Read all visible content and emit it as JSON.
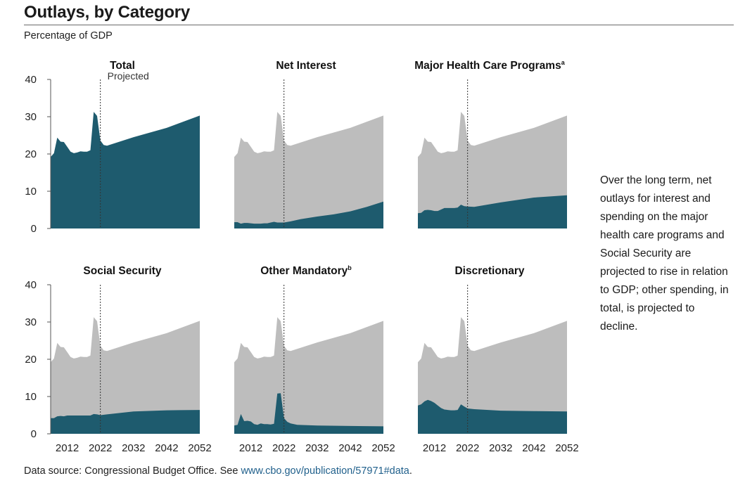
{
  "header": {
    "title": "Outlays, by Category",
    "subtitle": "Percentage of GDP"
  },
  "side_note": "Over the long term, net outlays for interest and spending on the major health care programs and Social Security are projected to rise in relation to GDP; other spending, in total, is projected to decline.",
  "footer": {
    "prefix": "Data source: Congressional Budget Office. See ",
    "link_text": "www.cbo.gov/publication/57971#data",
    "suffix": "."
  },
  "colors": {
    "category": "#1e5b6e",
    "total_background": "#bdbdbd",
    "axis": "#555555",
    "text": "#222222"
  },
  "chart_data": {
    "type": "area",
    "x_ticks": [
      2012,
      2022,
      2032,
      2042,
      2052
    ],
    "y_ticks": [
      0,
      10,
      20,
      30,
      40
    ],
    "xlim": [
      2007,
      2052
    ],
    "ylim": [
      0,
      40
    ],
    "projection_start": 2022,
    "projection_label": "Projected",
    "total": {
      "x": [
        2007,
        2008,
        2009,
        2010,
        2011,
        2012,
        2013,
        2014,
        2015,
        2016,
        2017,
        2018,
        2019,
        2020,
        2021,
        2022,
        2023,
        2024,
        2032,
        2042,
        2052
      ],
      "values": [
        19.2,
        20.2,
        24.4,
        23.3,
        23.2,
        21.9,
        20.6,
        20.2,
        20.4,
        20.7,
        20.6,
        20.6,
        21.0,
        31.3,
        30.2,
        23.6,
        22.4,
        22.2,
        24.5,
        27.0,
        30.3
      ]
    },
    "panels": [
      {
        "title": "Total",
        "superscript": "",
        "shows_background": false,
        "x": [
          2007,
          2008,
          2009,
          2010,
          2011,
          2012,
          2013,
          2014,
          2015,
          2016,
          2017,
          2018,
          2019,
          2020,
          2021,
          2022,
          2023,
          2024,
          2032,
          2042,
          2052
        ],
        "values": [
          19.2,
          20.2,
          24.4,
          23.3,
          23.2,
          21.9,
          20.6,
          20.2,
          20.4,
          20.7,
          20.6,
          20.6,
          21.0,
          31.3,
          30.2,
          23.6,
          22.4,
          22.2,
          24.5,
          27.0,
          30.3
        ]
      },
      {
        "title": "Net Interest",
        "superscript": "",
        "shows_background": true,
        "x": [
          2007,
          2008,
          2009,
          2010,
          2011,
          2012,
          2013,
          2014,
          2015,
          2016,
          2017,
          2018,
          2019,
          2020,
          2021,
          2022,
          2024,
          2027,
          2032,
          2037,
          2042,
          2047,
          2052
        ],
        "values": [
          1.7,
          1.7,
          1.3,
          1.5,
          1.5,
          1.4,
          1.3,
          1.3,
          1.3,
          1.4,
          1.4,
          1.6,
          1.8,
          1.6,
          1.6,
          1.6,
          1.9,
          2.5,
          3.2,
          3.8,
          4.6,
          5.8,
          7.2
        ]
      },
      {
        "title": "Major Health Care Programs",
        "superscript": "a",
        "shows_background": true,
        "x": [
          2007,
          2008,
          2009,
          2010,
          2011,
          2012,
          2013,
          2014,
          2015,
          2016,
          2017,
          2018,
          2019,
          2020,
          2021,
          2022,
          2024,
          2032,
          2042,
          2052
        ],
        "values": [
          4.1,
          4.2,
          4.9,
          5.0,
          4.9,
          4.7,
          4.7,
          5.1,
          5.5,
          5.5,
          5.5,
          5.5,
          5.6,
          6.4,
          6.0,
          5.9,
          5.8,
          7.0,
          8.3,
          8.9
        ]
      },
      {
        "title": "Social Security",
        "superscript": "",
        "shows_background": true,
        "x": [
          2007,
          2008,
          2009,
          2010,
          2011,
          2012,
          2013,
          2014,
          2015,
          2016,
          2017,
          2018,
          2019,
          2020,
          2021,
          2022,
          2024,
          2032,
          2042,
          2052
        ],
        "values": [
          4.2,
          4.2,
          4.7,
          4.8,
          4.7,
          4.9,
          4.9,
          4.9,
          4.9,
          4.9,
          4.9,
          4.9,
          4.9,
          5.3,
          5.2,
          5.0,
          5.2,
          6.0,
          6.3,
          6.4
        ]
      },
      {
        "title": "Other Mandatory",
        "superscript": "b",
        "shows_background": true,
        "x": [
          2007,
          2008,
          2009,
          2010,
          2011,
          2012,
          2013,
          2014,
          2015,
          2016,
          2017,
          2018,
          2019,
          2020,
          2021,
          2022,
          2023,
          2024,
          2026,
          2032,
          2042,
          2052
        ],
        "values": [
          2.2,
          2.4,
          5.3,
          3.4,
          3.5,
          3.3,
          2.6,
          2.4,
          2.8,
          2.6,
          2.6,
          2.5,
          2.7,
          10.8,
          10.9,
          4.2,
          3.2,
          2.8,
          2.4,
          2.2,
          2.1,
          2.0
        ]
      },
      {
        "title": "Discretionary",
        "superscript": "",
        "shows_background": true,
        "x": [
          2007,
          2008,
          2009,
          2010,
          2011,
          2012,
          2013,
          2014,
          2015,
          2016,
          2017,
          2018,
          2019,
          2020,
          2021,
          2022,
          2024,
          2032,
          2042,
          2052
        ],
        "values": [
          7.6,
          7.9,
          8.7,
          9.1,
          8.8,
          8.3,
          7.6,
          6.9,
          6.5,
          6.4,
          6.3,
          6.3,
          6.4,
          7.9,
          7.3,
          6.8,
          6.6,
          6.2,
          6.1,
          6.0
        ]
      }
    ]
  }
}
